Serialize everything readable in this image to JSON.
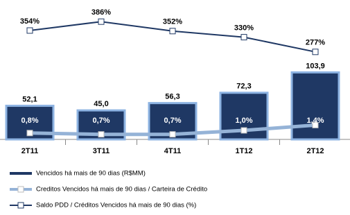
{
  "chart_data": {
    "type": "bar",
    "categories": [
      "2T11",
      "3T11",
      "4T11",
      "1T12",
      "2T12"
    ],
    "series": [
      {
        "name": "Vencidos há mais de 90 dias (R$MM)",
        "type": "bar",
        "color": "#1f3864",
        "values": [
          52.1,
          45.0,
          56.3,
          72.3,
          103.9
        ],
        "value_labels": [
          "52,1",
          "45,0",
          "56,3",
          "72,3",
          "103,9"
        ]
      },
      {
        "name": "Creditos Vencidos há mais de 90 dias / Carteira de Crédito",
        "type": "line",
        "color": "#95b3d7",
        "values": [
          0.8,
          0.7,
          0.7,
          1.0,
          1.4
        ],
        "value_labels": [
          "0,8%",
          "0,7%",
          "0,7%",
          "1,0%",
          "1,4%"
        ]
      },
      {
        "name": "Saldo PDD / Créditos Vencidos há mais de 90 dias  (%)",
        "type": "line",
        "color": "#1f3864",
        "values": [
          354,
          386,
          352,
          330,
          277
        ],
        "value_labels": [
          "354%",
          "386%",
          "352%",
          "330%",
          "277%"
        ]
      }
    ]
  }
}
